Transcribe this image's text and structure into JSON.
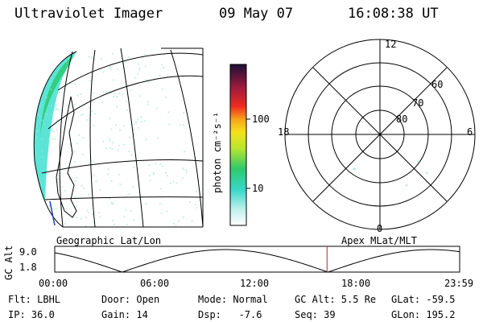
{
  "header": {
    "title": "Ultraviolet Imager",
    "date": "09 May 07",
    "time": "16:08:38 UT"
  },
  "colorbar": {
    "label": "photon cm⁻²s⁻¹",
    "ticks": [
      "100",
      "10"
    ]
  },
  "polar": {
    "mlt_labels": [
      "12",
      "18",
      "6",
      "0"
    ],
    "mlat_labels": [
      "60",
      "70",
      "80"
    ]
  },
  "map": {
    "label": "Geographic Lat/Lon"
  },
  "timeline": {
    "ylabel": "GC Alt",
    "yticks": [
      "9.0",
      "1.8"
    ],
    "right_label": "Apex MLat/MLT",
    "xticks": [
      "00:00",
      "06:00",
      "12:00",
      "18:00",
      "23:59"
    ],
    "current_time_hours": 16.14
  },
  "info": {
    "flt": "Flt: LBHL",
    "ip": "IP: 36.0",
    "door": "Door: Open",
    "gain": "Gain: 14",
    "mode": "Mode: Normal",
    "dsp": "Dsp:   -7.6",
    "gcalt": "GC Alt: 5.5 Re",
    "seq": "Seq: 39",
    "glat": "GLat: -59.5",
    "glon": "GLon: 195.2"
  }
}
